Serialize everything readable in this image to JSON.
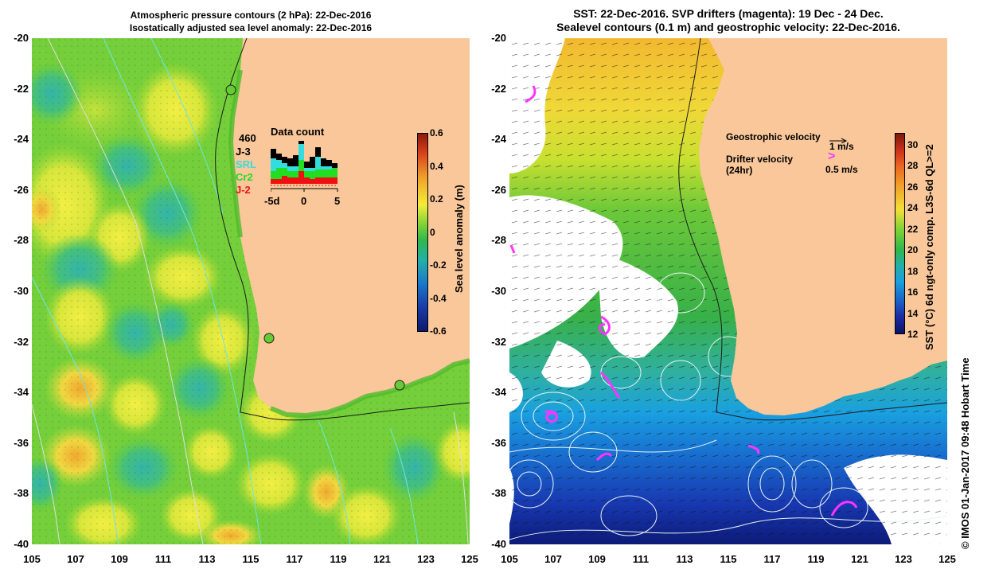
{
  "left_panel": {
    "title_line1": "Atmospheric pressure contours (2 hPa): 22-Dec-2016",
    "title_line2": "Isostatically adjusted sea level anomaly: 22-Dec-2016",
    "colorbar": {
      "label": "Sea level anomaly (m)",
      "ticks": [
        "0.6",
        "0.4",
        "0.2",
        "0",
        "-0.2",
        "-0.4",
        "-0.6"
      ],
      "range": [
        -0.6,
        0.6
      ]
    },
    "data_count": {
      "title": "Data count",
      "total": "460",
      "legend": [
        {
          "label": "J-3",
          "color": "#000000"
        },
        {
          "label": "SRL",
          "color": "#33dddd"
        },
        {
          "label": "Cr2",
          "color": "#22dd22"
        },
        {
          "label": "J-2",
          "color": "#ee1111"
        }
      ],
      "axis_labels": [
        "-5d",
        "0",
        "5"
      ]
    },
    "tide_gauges": [
      "tide-gauge-exmouth",
      "tide-gauge-fremantle",
      "tide-gauge-esperance"
    ]
  },
  "right_panel": {
    "title_line1": "SST: 22-Dec-2016. SVP drifters (magenta): 19 Dec - 24 Dec.",
    "title_line2": "Sealevel contours (0.1 m) and geostrophic velocity: 22-Dec-2016.",
    "legend": {
      "geo_label": "Geostrophic velocity",
      "geo_scale": "1 m/s",
      "drifter_label": "Drifter velocity",
      "drifter_sub": "(24hr)",
      "drifter_scale": "0.5 m/s",
      "drifter_symbol": ">"
    },
    "colorbar": {
      "label": "SST (°C) 6d ngt-only comp. L3S-6d QL>=2",
      "ticks": [
        "30",
        "28",
        "26",
        "24",
        "22",
        "20",
        "18",
        "16",
        "14",
        "12"
      ],
      "range": [
        12,
        31
      ]
    }
  },
  "axes": {
    "y_ticks": [
      "-20",
      "-22",
      "-24",
      "-26",
      "-28",
      "-30",
      "-32",
      "-34",
      "-36",
      "-38",
      "-40"
    ],
    "x_ticks": [
      "105",
      "107",
      "109",
      "111",
      "113",
      "115",
      "117",
      "119",
      "121",
      "123",
      "125"
    ]
  },
  "credit": "© IMOS 01-Jan-2017 09:48 Hobart Time",
  "colors": {
    "land": "#f9c79a",
    "ocean_green": "#66cc33",
    "drifter": "#ff33ff"
  }
}
